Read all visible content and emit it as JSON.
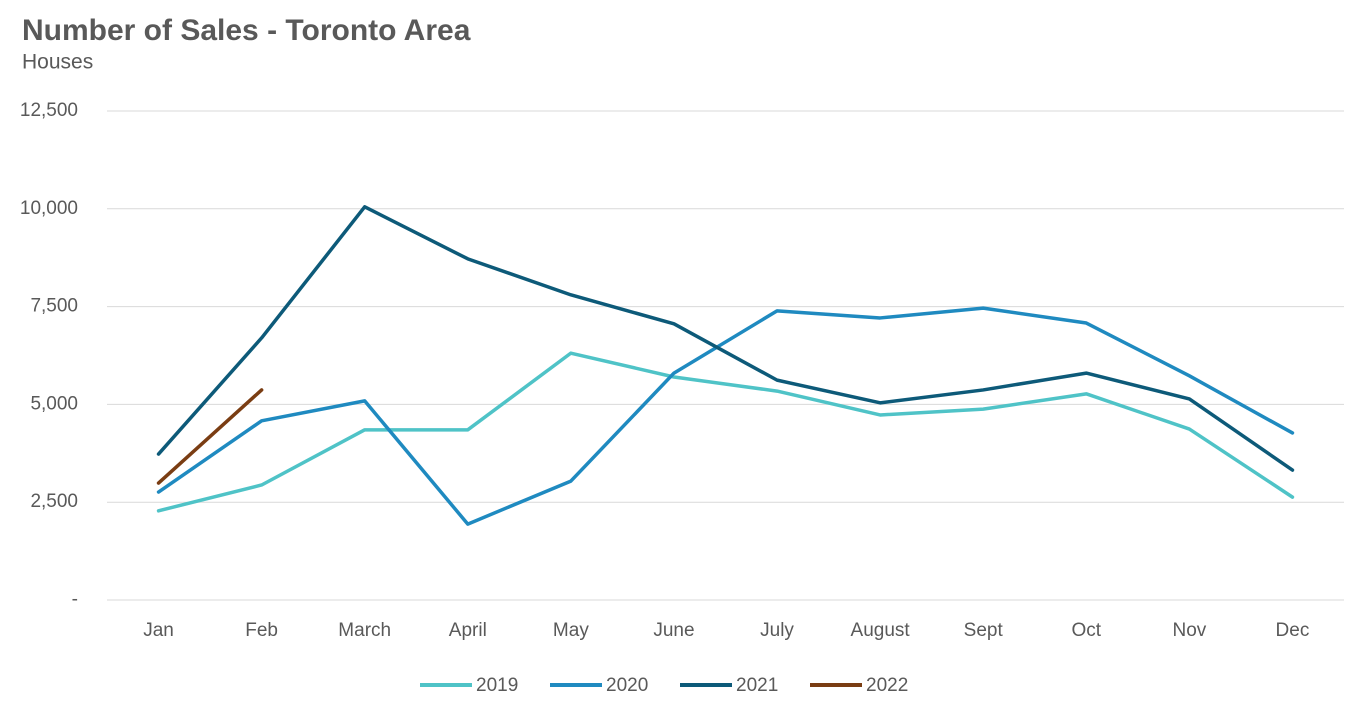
{
  "chart_data": {
    "type": "line",
    "title": "Number of Sales - Toronto Area",
    "subtitle": "Houses",
    "categories": [
      "Jan",
      "Feb",
      "March",
      "April",
      "May",
      "June",
      "July",
      "August",
      "Sept",
      "Oct",
      "Nov",
      "Dec"
    ],
    "series": [
      {
        "name": "2019",
        "color": "#4fc3c7",
        "values": [
          2280,
          2940,
          4350,
          4350,
          6310,
          5700,
          5340,
          4730,
          4880,
          5270,
          4370,
          2630
        ]
      },
      {
        "name": "2020",
        "color": "#1f8ac0",
        "values": [
          2760,
          4580,
          5090,
          1940,
          3040,
          5800,
          7390,
          7210,
          7460,
          7080,
          5730,
          4270
        ]
      },
      {
        "name": "2021",
        "color": "#0d5a79",
        "values": [
          3730,
          6700,
          10050,
          8720,
          7800,
          7060,
          5620,
          5040,
          5370,
          5800,
          5140,
          3320
        ]
      },
      {
        "name": "2022",
        "color": "#7a3d13",
        "values": [
          2990,
          5370,
          null,
          null,
          null,
          null,
          null,
          null,
          null,
          null,
          null,
          null
        ]
      }
    ],
    "ylim": [
      0,
      12500
    ],
    "yticks": [
      {
        "value": 0,
        "label": "-"
      },
      {
        "value": 2500,
        "label": "2,500"
      },
      {
        "value": 5000,
        "label": "5,000"
      },
      {
        "value": 7500,
        "label": "7,500"
      },
      {
        "value": 10000,
        "label": "10,000"
      },
      {
        "value": 12500,
        "label": "12,500"
      }
    ],
    "grid": true,
    "legend": "bottom"
  }
}
